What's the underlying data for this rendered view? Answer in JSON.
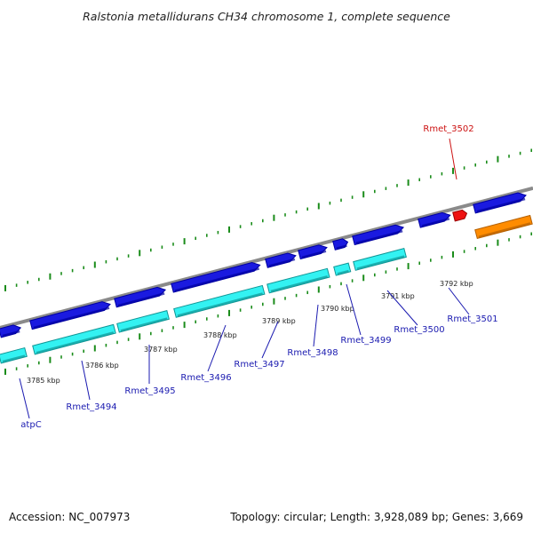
{
  "title": "Ralstonia metallidurans CH34 chromosome 1, complete sequence",
  "footer": {
    "accession": "Accession: NC_007973",
    "summary": "Topology: circular; Length: 3,928,089 bp; Genes: 3,669"
  },
  "colors": {
    "forward_cds": "#1a1ae0",
    "forward_cds_dark": "#0000a0",
    "reverse_cds": "#33f2f2",
    "reverse_cds_dark": "#109595",
    "orange_feature": "#ff8c00",
    "red_feature": "#ee1111",
    "backbone": "#8a8a8a",
    "ticks": "#1a8c1a",
    "label_blue": "#1a1ab0",
    "label_red": "#cc1111"
  },
  "kbp_labels": [
    "3785 kbp",
    "3786 kbp",
    "3787 kbp",
    "3788 kbp",
    "3789 kbp",
    "3790 kbp",
    "3791 kbp",
    "3792 kbp"
  ],
  "gene_labels": [
    {
      "text": "atpC",
      "color": "blue"
    },
    {
      "text": "Rmet_3494",
      "color": "blue"
    },
    {
      "text": "Rmet_3495",
      "color": "blue"
    },
    {
      "text": "Rmet_3496",
      "color": "blue"
    },
    {
      "text": "Rmet_3497",
      "color": "blue"
    },
    {
      "text": "Rmet_3498",
      "color": "blue"
    },
    {
      "text": "Rmet_3499",
      "color": "blue"
    },
    {
      "text": "Rmet_3500",
      "color": "blue"
    },
    {
      "text": "Rmet_3501",
      "color": "blue"
    },
    {
      "text": "Rmet_3502",
      "color": "red"
    }
  ]
}
